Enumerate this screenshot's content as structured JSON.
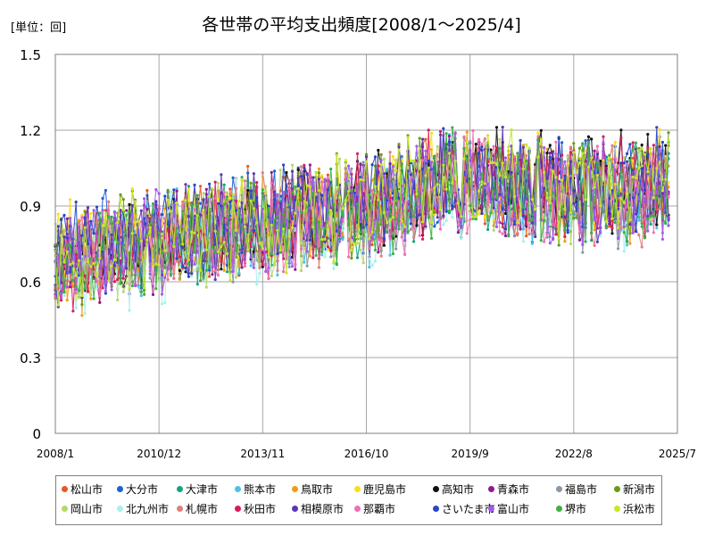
{
  "chart_data": {
    "type": "line",
    "title": "各世帯の平均支出頻度[2008/1～2025/4]",
    "unit_label": "[単位：回]",
    "xlabel": "",
    "ylabel": "",
    "ylim": [
      0,
      1.5
    ],
    "y_ticks": [
      "0",
      "0.3",
      "0.6",
      "0.9",
      "1.2",
      "1.5"
    ],
    "x_ticks": [
      "2008/1",
      "2010/12",
      "2013/11",
      "2016/10",
      "2019/9",
      "2022/8",
      "2025/7"
    ],
    "grid": true,
    "legend_position": "bottom",
    "x_start": "2008/1",
    "x_end": "2025/4",
    "series": [
      {
        "name": "松山市",
        "color": "#e8572a",
        "samples": [
          0.68,
          0.74,
          0.79,
          0.83,
          0.86,
          0.88,
          0.92,
          1.02,
          0.98,
          0.93,
          0.95,
          1.03
        ]
      },
      {
        "name": "大分市",
        "color": "#1f5fd6",
        "samples": [
          0.72,
          0.78,
          0.8,
          0.82,
          0.85,
          0.87,
          0.9,
          1.0,
          0.99,
          0.95,
          0.96,
          1.0
        ]
      },
      {
        "name": "大津市",
        "color": "#14a37f",
        "samples": [
          0.66,
          0.73,
          0.77,
          0.8,
          0.84,
          0.86,
          0.89,
          1.01,
          0.97,
          0.92,
          0.94,
          0.98
        ]
      },
      {
        "name": "熊本市",
        "color": "#4fc1e9",
        "samples": [
          0.64,
          0.7,
          0.75,
          0.79,
          0.82,
          0.85,
          0.88,
          0.98,
          0.96,
          0.93,
          0.92,
          0.97
        ]
      },
      {
        "name": "鳥取市",
        "color": "#f39c12",
        "samples": [
          0.65,
          0.71,
          0.76,
          0.8,
          0.83,
          0.86,
          0.9,
          1.02,
          1.0,
          0.95,
          0.94,
          0.99
        ]
      },
      {
        "name": "鹿児島市",
        "color": "#f7e017",
        "samples": [
          0.7,
          0.76,
          0.79,
          0.82,
          0.85,
          0.89,
          0.93,
          1.03,
          1.01,
          0.96,
          0.97,
          1.01
        ]
      },
      {
        "name": "高知市",
        "color": "#111111",
        "samples": [
          0.69,
          0.75,
          0.79,
          0.83,
          0.87,
          0.9,
          0.94,
          1.05,
          1.03,
          0.99,
          0.98,
          1.0
        ]
      },
      {
        "name": "青森市",
        "color": "#8e1a8e",
        "samples": [
          0.67,
          0.72,
          0.76,
          0.8,
          0.84,
          0.87,
          0.9,
          1.0,
          0.98,
          0.94,
          0.96,
          0.99
        ]
      },
      {
        "name": "福島市",
        "color": "#8c98a6",
        "samples": [
          0.66,
          0.7,
          0.74,
          0.79,
          0.83,
          0.86,
          0.89,
          0.99,
          0.97,
          0.93,
          0.94,
          0.96
        ]
      },
      {
        "name": "新潟市",
        "color": "#6b9a1a",
        "samples": [
          0.68,
          0.73,
          0.77,
          0.81,
          0.85,
          0.88,
          0.92,
          1.02,
          1.0,
          0.95,
          0.96,
          0.99
        ]
      },
      {
        "name": "岡山市",
        "color": "#b5d96b",
        "samples": [
          0.65,
          0.7,
          0.75,
          0.79,
          0.83,
          0.86,
          0.9,
          1.0,
          0.98,
          0.94,
          0.95,
          0.98
        ]
      },
      {
        "name": "北九州市",
        "color": "#a7f0ee",
        "samples": [
          0.63,
          0.69,
          0.73,
          0.78,
          0.81,
          0.84,
          0.88,
          0.98,
          0.96,
          0.92,
          0.93,
          0.96
        ]
      },
      {
        "name": "札幌市",
        "color": "#e07f7f",
        "samples": [
          0.67,
          0.72,
          0.76,
          0.8,
          0.84,
          0.87,
          0.91,
          1.01,
          0.99,
          0.94,
          0.95,
          0.98
        ]
      },
      {
        "name": "秋田市",
        "color": "#d81b60",
        "samples": [
          0.68,
          0.73,
          0.77,
          0.81,
          0.85,
          0.88,
          0.92,
          1.02,
          1.0,
          0.96,
          0.96,
          0.99
        ]
      },
      {
        "name": "相模原市",
        "color": "#5e35b1",
        "samples": [
          0.69,
          0.74,
          0.78,
          0.82,
          0.86,
          0.89,
          0.92,
          1.02,
          1.01,
          0.96,
          0.97,
          1.0
        ]
      },
      {
        "name": "那覇市",
        "color": "#f06fb4",
        "samples": [
          0.66,
          0.71,
          0.75,
          0.79,
          0.83,
          0.86,
          0.9,
          1.0,
          0.98,
          0.94,
          0.95,
          0.98
        ]
      },
      {
        "name": "さいたま市",
        "color": "#2746c9",
        "samples": [
          0.7,
          0.75,
          0.79,
          0.83,
          0.87,
          0.9,
          0.93,
          1.03,
          1.01,
          0.97,
          0.98,
          1.01
        ]
      },
      {
        "name": "富山市",
        "color": "#a259f0",
        "samples": [
          0.67,
          0.72,
          0.76,
          0.8,
          0.84,
          0.87,
          0.91,
          1.01,
          0.99,
          0.95,
          0.96,
          0.99
        ]
      },
      {
        "name": "堺市",
        "color": "#3cb043",
        "samples": [
          0.66,
          0.71,
          0.75,
          0.79,
          0.83,
          0.86,
          0.9,
          1.0,
          0.98,
          0.94,
          0.95,
          0.98
        ]
      },
      {
        "name": "浜松市",
        "color": "#c7e62a",
        "samples": [
          0.68,
          0.73,
          0.77,
          0.81,
          0.85,
          0.88,
          0.92,
          1.01,
          0.99,
          0.95,
          0.96,
          0.99
        ]
      }
    ]
  }
}
